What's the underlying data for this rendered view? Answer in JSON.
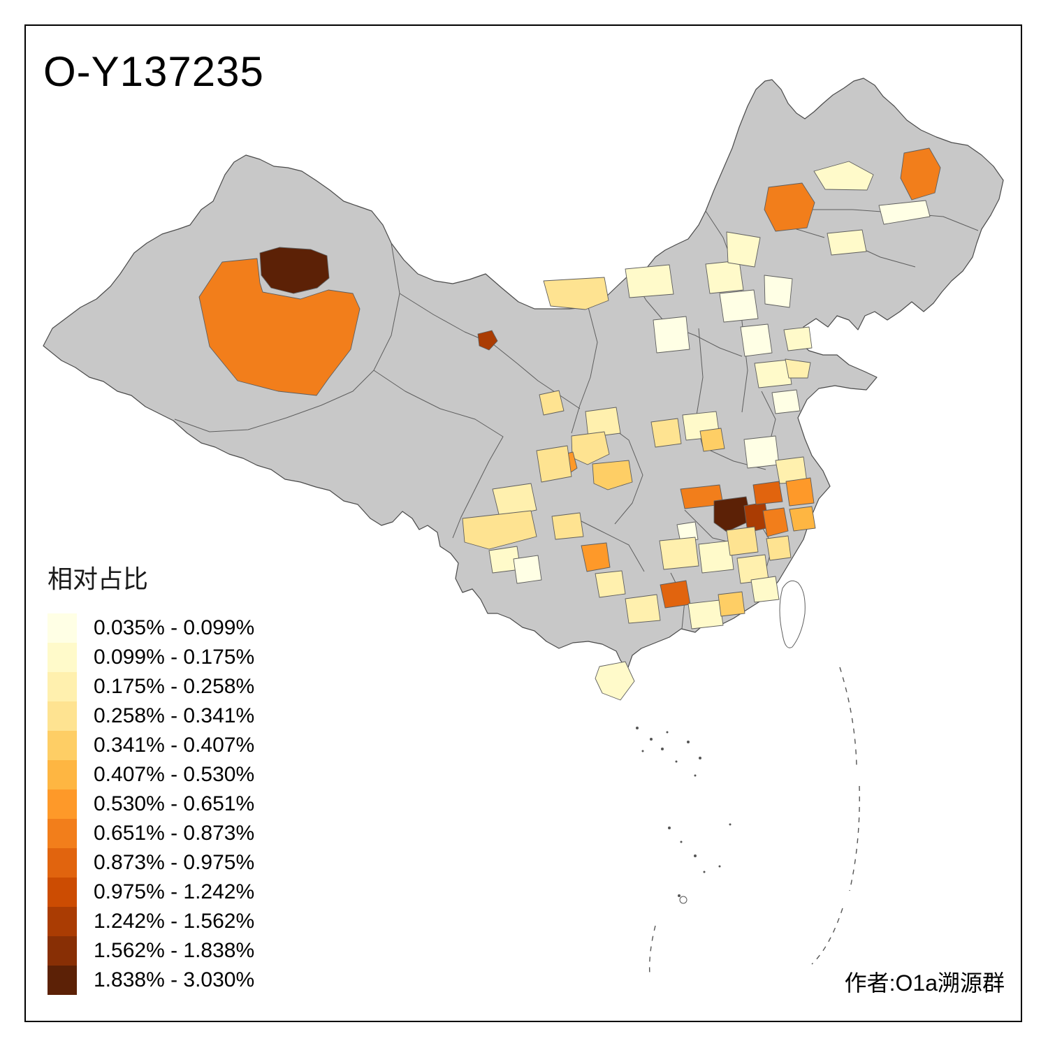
{
  "title": "O-Y137235",
  "attribution": "作者:O1a溯源群",
  "map": {
    "base_color": "#C8C8C8",
    "border_color": "#5E5E5E",
    "outline_color": "#4A4A4A",
    "sea_color": "#FFFFFF",
    "frame_color": "#000000"
  },
  "legend": {
    "title": "相对占比",
    "items": [
      {
        "label": "0.035% - 0.099%",
        "color": "#FFFFE5"
      },
      {
        "label": "0.099% - 0.175%",
        "color": "#FFFACA"
      },
      {
        "label": "0.175% - 0.258%",
        "color": "#FFF0AE"
      },
      {
        "label": "0.258% - 0.341%",
        "color": "#FEE391"
      },
      {
        "label": "0.341% - 0.407%",
        "color": "#FECE65"
      },
      {
        "label": "0.407% - 0.530%",
        "color": "#FEB642"
      },
      {
        "label": "0.530% - 0.651%",
        "color": "#FE9929"
      },
      {
        "label": "0.651% - 0.873%",
        "color": "#F27E1B"
      },
      {
        "label": "0.873% - 0.975%",
        "color": "#E1640E"
      },
      {
        "label": "0.975% - 1.242%",
        "color": "#CC4C02"
      },
      {
        "label": "1.242% - 1.562%",
        "color": "#AA3C03"
      },
      {
        "label": "1.562% - 1.838%",
        "color": "#882F05"
      },
      {
        "label": "1.838% - 3.030%",
        "color": "#5C2106"
      }
    ]
  }
}
